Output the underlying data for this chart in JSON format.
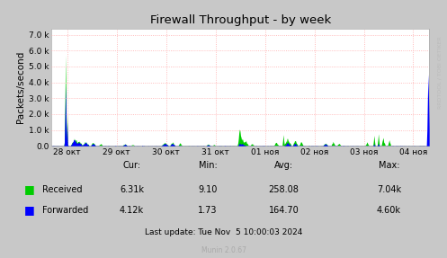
{
  "title": "Firewall Throughput - by week",
  "ylabel": "Packets/second",
  "fig_bg_color": "#c8c8c8",
  "plot_bg_color": "#ffffff",
  "ytick_values": [
    0,
    1000,
    2000,
    3000,
    4000,
    5000,
    6000,
    7000
  ],
  "ylim": [
    0,
    7400
  ],
  "x_tick_labels": [
    "28 окт",
    "29 окт",
    "30 окт",
    "31 окт",
    "01 ноя",
    "02 ноя",
    "03 ноя",
    "04 ноя"
  ],
  "received_color": "#00cc00",
  "forwarded_color": "#0000ff",
  "stats_header": [
    "Cur:",
    "Min:",
    "Avg:",
    "Max:"
  ],
  "stats_received": [
    "6.31k",
    "9.10",
    "258.08",
    "7.04k"
  ],
  "stats_forwarded": [
    "4.12k",
    "1.73",
    "164.70",
    "4.60k"
  ],
  "last_update": "Last update: Tue Nov  5 10:00:03 2024",
  "munin_version": "Munin 2.0.67",
  "watermark": "RRDTOOL / TOBI OETIKER",
  "n_points": 700
}
